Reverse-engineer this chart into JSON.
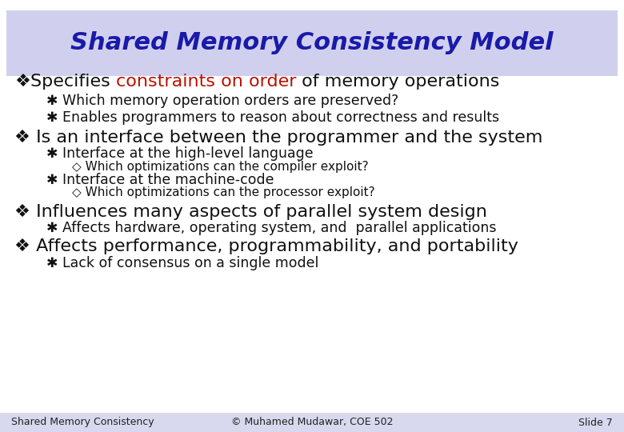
{
  "title": "Shared Memory Consistency Model",
  "title_color": "#1a1aaa",
  "title_bg_color": "#d0d0ee",
  "background_color": "#ffffff",
  "footer_left": "Shared Memory Consistency",
  "footer_center": "© Muhamed Mudawar, COE 502",
  "footer_right": "Slide 7",
  "footer_bg_color": "#d8d8ee",
  "col_black": "#111111",
  "col_red": "#bb1100",
  "main_font_size": 16,
  "sub_font_size": 12.5,
  "sub2_font_size": 11,
  "title_font_size": 22,
  "footer_font_size": 9
}
